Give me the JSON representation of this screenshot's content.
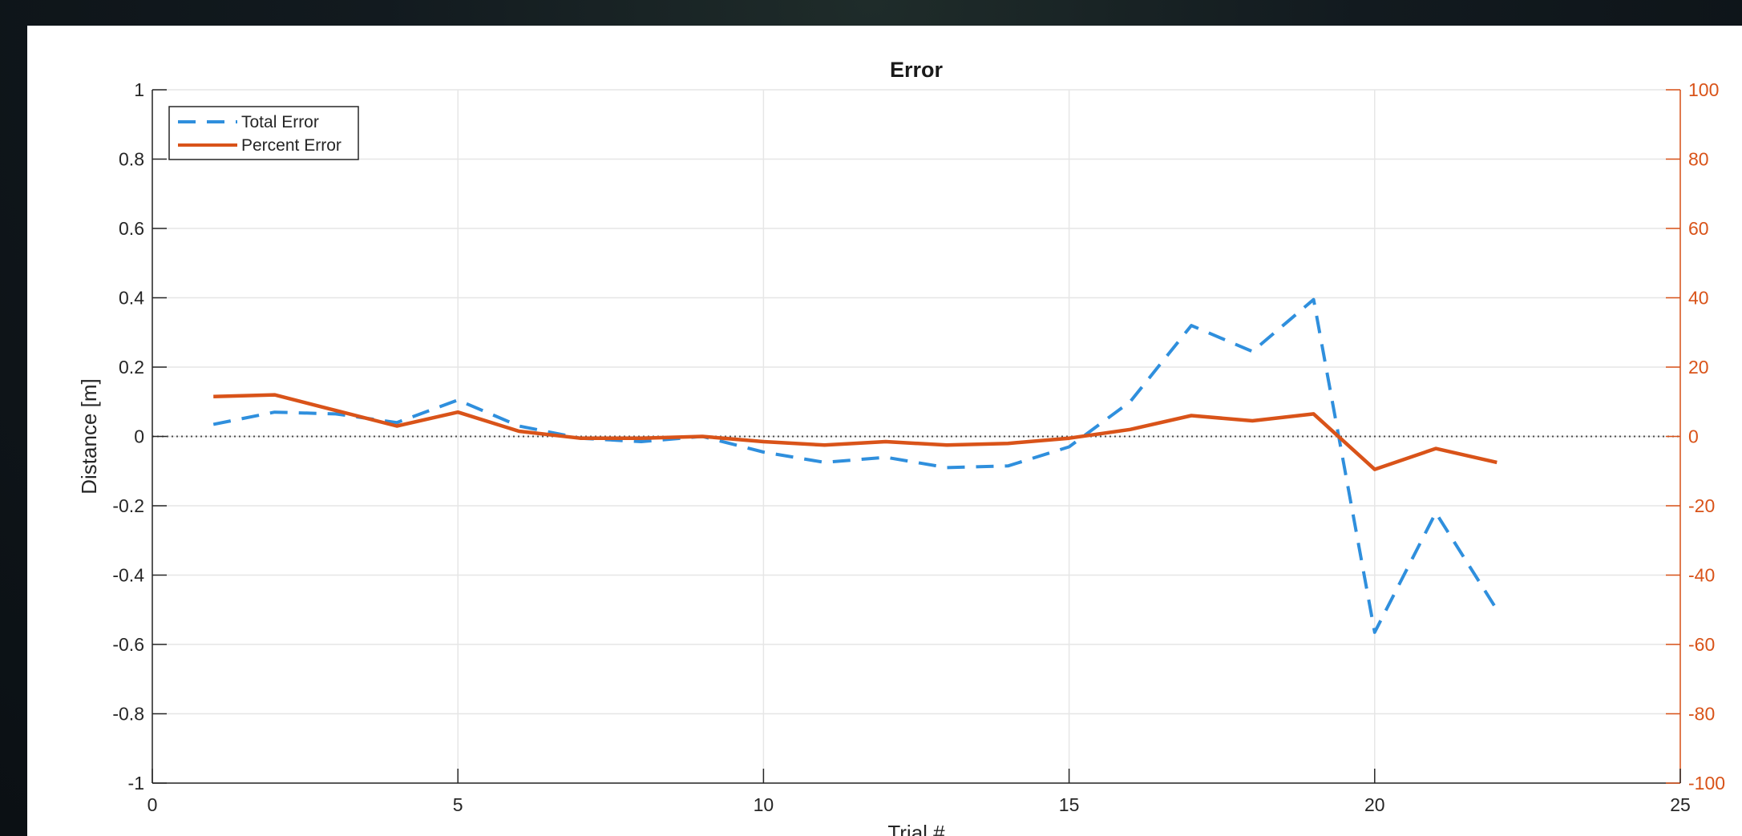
{
  "chart_data": {
    "type": "line",
    "title": "Error",
    "xlabel": "Trial #",
    "ylabel": "Distance [m]",
    "y2label": "",
    "xlim": [
      0,
      25
    ],
    "ylim": [
      -1,
      1
    ],
    "y2lim": [
      -100,
      100
    ],
    "xticks": [
      "0",
      "5",
      "10",
      "15",
      "20",
      "25"
    ],
    "yticks": [
      "1",
      "0.8",
      "0.6",
      "0.4",
      "0.2",
      "0",
      "-0.2",
      "-0.4",
      "-0.6",
      "-0.8",
      "-1"
    ],
    "y2ticks": [
      "100",
      "80",
      "60",
      "40",
      "20",
      "0",
      "-20",
      "-40",
      "-60",
      "-80",
      "-100"
    ],
    "grid": true,
    "zero_line": true,
    "legend": "top-left",
    "x": [
      1,
      2,
      3,
      4,
      5,
      6,
      7,
      8,
      9,
      10,
      11,
      12,
      13,
      14,
      15,
      16,
      17,
      18,
      19,
      20,
      21,
      22
    ],
    "series": [
      {
        "name": "Total Error",
        "axis": "left",
        "style": "dashed",
        "color": "#2f8fdd",
        "values": [
          0.035,
          0.07,
          0.065,
          0.04,
          0.105,
          0.03,
          -0.005,
          -0.015,
          0.0,
          -0.045,
          -0.075,
          -0.06,
          -0.09,
          -0.085,
          -0.03,
          0.1,
          0.32,
          0.245,
          0.395,
          -0.565,
          -0.22,
          -0.5
        ]
      },
      {
        "name": "Percent Error",
        "axis": "right",
        "style": "solid",
        "color": "#d95319",
        "values": [
          11.5,
          12,
          7.5,
          3,
          7,
          1.5,
          -0.5,
          -0.5,
          0,
          -1.5,
          -2.5,
          -1.5,
          -2.5,
          -2,
          -0.5,
          2,
          6,
          4.5,
          6.5,
          -9.5,
          -3.5,
          -7.5
        ]
      }
    ]
  }
}
